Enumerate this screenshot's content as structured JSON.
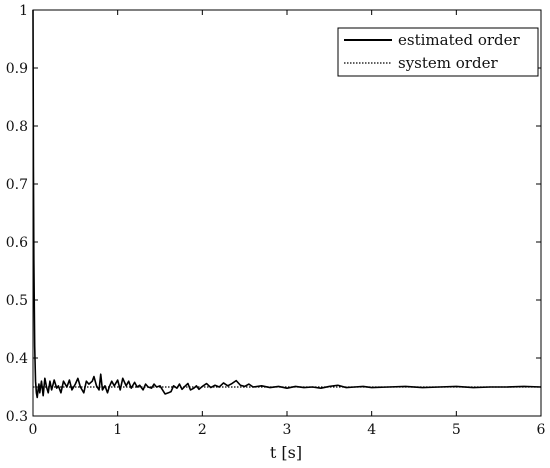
{
  "chart_data": {
    "type": "line",
    "title": "",
    "xlabel": "t [s]",
    "ylabel": "",
    "xlim": [
      0,
      6
    ],
    "ylim": [
      0.3,
      1
    ],
    "xticks": [
      0,
      1,
      2,
      3,
      4,
      5,
      6
    ],
    "xtick_labels": [
      "0",
      "1",
      "2",
      "3",
      "4",
      "5",
      "6"
    ],
    "yticks": [
      0.3,
      0.4,
      0.5,
      0.6,
      0.7,
      0.8,
      0.9,
      1
    ],
    "ytick_labels": [
      "0.3",
      "0.4",
      "0.5",
      "0.6",
      "0.7",
      "0.8",
      "0.9",
      "1"
    ],
    "grid": false,
    "legend_position": "top-right",
    "series": [
      {
        "name": "estimated order",
        "style": "solid",
        "color": "#000000",
        "x": [
          0.0,
          0.005,
          0.01,
          0.02,
          0.03,
          0.04,
          0.05,
          0.06,
          0.07,
          0.08,
          0.1,
          0.12,
          0.14,
          0.16,
          0.18,
          0.2,
          0.22,
          0.25,
          0.28,
          0.3,
          0.33,
          0.36,
          0.4,
          0.43,
          0.46,
          0.5,
          0.53,
          0.56,
          0.6,
          0.63,
          0.66,
          0.7,
          0.72,
          0.75,
          0.78,
          0.8,
          0.82,
          0.85,
          0.88,
          0.9,
          0.93,
          0.96,
          1.0,
          1.03,
          1.06,
          1.1,
          1.13,
          1.16,
          1.2,
          1.23,
          1.26,
          1.3,
          1.33,
          1.36,
          1.4,
          1.43,
          1.46,
          1.5,
          1.53,
          1.56,
          1.6,
          1.63,
          1.66,
          1.7,
          1.73,
          1.76,
          1.8,
          1.83,
          1.86,
          1.9,
          1.93,
          1.96,
          2.0,
          2.05,
          2.1,
          2.15,
          2.2,
          2.25,
          2.3,
          2.35,
          2.4,
          2.45,
          2.5,
          2.55,
          2.6,
          2.7,
          2.8,
          2.9,
          3.0,
          3.1,
          3.2,
          3.3,
          3.4,
          3.5,
          3.6,
          3.7,
          3.8,
          3.9,
          4.0,
          4.2,
          4.4,
          4.6,
          4.8,
          5.0,
          5.2,
          5.4,
          5.6,
          5.8,
          6.0
        ],
        "y": [
          1.0,
          0.73,
          0.57,
          0.42,
          0.36,
          0.34,
          0.332,
          0.345,
          0.355,
          0.34,
          0.36,
          0.335,
          0.365,
          0.35,
          0.34,
          0.36,
          0.345,
          0.362,
          0.348,
          0.352,
          0.34,
          0.36,
          0.35,
          0.362,
          0.345,
          0.355,
          0.365,
          0.35,
          0.34,
          0.36,
          0.355,
          0.36,
          0.368,
          0.352,
          0.345,
          0.372,
          0.345,
          0.352,
          0.34,
          0.35,
          0.36,
          0.352,
          0.362,
          0.345,
          0.365,
          0.352,
          0.36,
          0.348,
          0.358,
          0.35,
          0.353,
          0.345,
          0.355,
          0.35,
          0.348,
          0.355,
          0.35,
          0.352,
          0.345,
          0.338,
          0.34,
          0.342,
          0.352,
          0.348,
          0.355,
          0.346,
          0.352,
          0.356,
          0.345,
          0.348,
          0.352,
          0.346,
          0.351,
          0.356,
          0.349,
          0.353,
          0.35,
          0.357,
          0.352,
          0.356,
          0.361,
          0.353,
          0.351,
          0.355,
          0.35,
          0.352,
          0.349,
          0.351,
          0.348,
          0.351,
          0.349,
          0.35,
          0.348,
          0.351,
          0.353,
          0.349,
          0.35,
          0.351,
          0.349,
          0.35,
          0.351,
          0.349,
          0.35,
          0.351,
          0.349,
          0.35,
          0.35,
          0.351,
          0.35
        ]
      },
      {
        "name": "system order",
        "style": "dotted",
        "color": "#000000",
        "x": [
          0,
          6
        ],
        "y": [
          0.35,
          0.35
        ]
      }
    ]
  }
}
